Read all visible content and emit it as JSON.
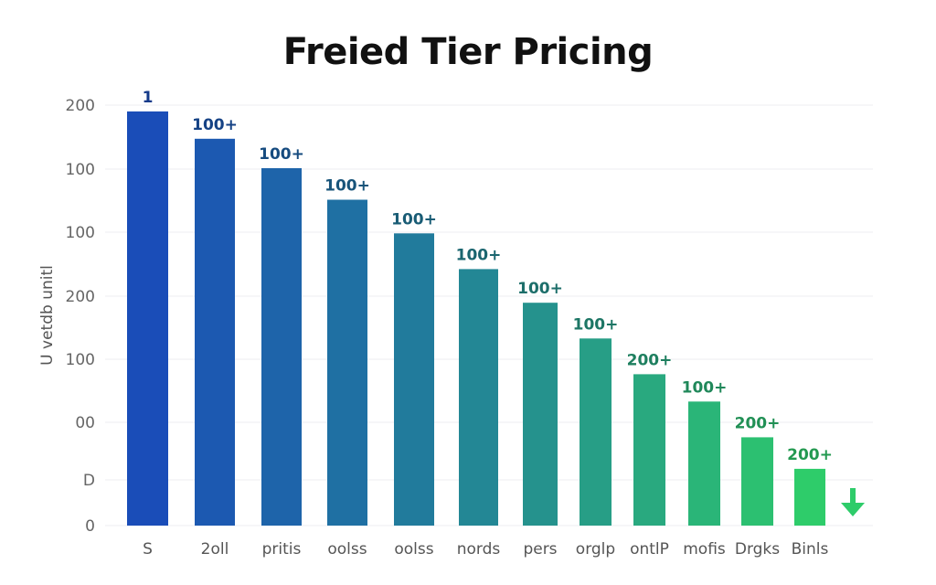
{
  "chart_data": {
    "type": "bar",
    "title": "Freied Tier Pricing",
    "ylabel": "U vetdb unitl",
    "xlabel": "",
    "categories": [
      "S",
      "2oll",
      "pritis",
      "oolss",
      "oolss",
      "nords",
      "pers",
      "orglp",
      "ontlP",
      "mofis",
      "Drgks",
      "Binls"
    ],
    "values": [
      197,
      184,
      170,
      155,
      139,
      122,
      106,
      89,
      72,
      59,
      42,
      27
    ],
    "data_labels": [
      "1",
      "100+",
      "100+",
      "100+",
      "100+",
      "100+",
      "100+",
      "100+",
      "200+",
      "100+",
      "200+",
      "200+"
    ],
    "y_tick_labels": [
      "0",
      "D",
      "00",
      "100",
      "200",
      "100",
      "100",
      "200"
    ],
    "ylim": [
      0,
      200
    ],
    "grid": true,
    "legend": "none",
    "colors": {
      "start": "#1a4db8",
      "end": "#2ecc6a"
    },
    "annotation_icon": "down-arrow-icon"
  }
}
